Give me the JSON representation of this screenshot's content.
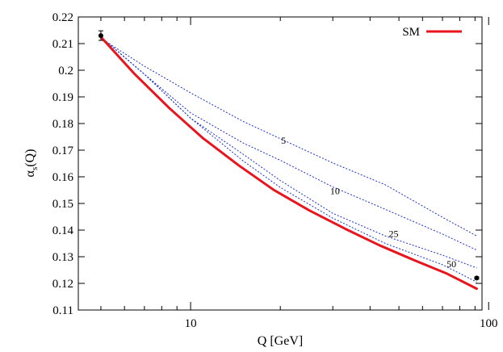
{
  "chart_data": {
    "type": "line",
    "title": "",
    "xlabel": "Q  [GeV]",
    "ylabel_main": "α",
    "ylabel_sub": "s",
    "ylabel_suffix": "(Q)",
    "xscale": "log",
    "xlim": [
      4.2,
      95
    ],
    "ylim": [
      0.11,
      0.22
    ],
    "grid": false,
    "legend": {
      "position": "top-right"
    },
    "x_ticks": [
      {
        "value": 10,
        "label": "10"
      },
      {
        "value": 100,
        "label": "100"
      }
    ],
    "y_ticks": [
      {
        "value": 0.11,
        "label": "0.11"
      },
      {
        "value": 0.12,
        "label": "0.12"
      },
      {
        "value": 0.13,
        "label": "0.13"
      },
      {
        "value": 0.14,
        "label": "0.14"
      },
      {
        "value": 0.15,
        "label": "0.15"
      },
      {
        "value": 0.16,
        "label": "0.16"
      },
      {
        "value": 0.17,
        "label": "0.17"
      },
      {
        "value": 0.18,
        "label": "0.18"
      },
      {
        "value": 0.19,
        "label": "0.19"
      },
      {
        "value": 0.2,
        "label": "0.2"
      },
      {
        "value": 0.21,
        "label": "0.21"
      },
      {
        "value": 0.22,
        "label": "0.22"
      }
    ],
    "series": [
      {
        "name": "SM",
        "color": "#e8141e",
        "style": "solid",
        "x": [
          5,
          6.5,
          8.5,
          11,
          14.5,
          19,
          25,
          33,
          43,
          56,
          72,
          91.2
        ],
        "y": [
          0.2125,
          0.1985,
          0.1857,
          0.1745,
          0.1643,
          0.1551,
          0.1474,
          0.1405,
          0.1343,
          0.1288,
          0.1238,
          0.118
        ]
      },
      {
        "label": "5",
        "color": "#1c32c8",
        "style": "dotted",
        "x": [
          5,
          7,
          10,
          15,
          20,
          30,
          45,
          70,
          91.2
        ],
        "y": [
          0.212,
          0.2015,
          0.1915,
          0.1808,
          0.1743,
          0.1652,
          0.157,
          0.1448,
          0.1378
        ]
      },
      {
        "label": "10",
        "color": "#1c32c8",
        "style": "dotted",
        "x": [
          5,
          7,
          10,
          15,
          20,
          30,
          45,
          70,
          91.2
        ],
        "y": [
          0.2125,
          0.1985,
          0.184,
          0.1727,
          0.1662,
          0.1562,
          0.1478,
          0.1385,
          0.1325
        ]
      },
      {
        "label": "25",
        "color": "#1c32c8",
        "style": "dotted",
        "x": [
          5,
          7,
          10,
          15,
          20,
          30,
          45,
          70,
          91.2
        ],
        "y": [
          0.2125,
          0.1985,
          0.182,
          0.1685,
          0.1586,
          0.1463,
          0.1378,
          0.1306,
          0.1258
        ]
      },
      {
        "label": "50",
        "color": "#1c32c8",
        "style": "dotted",
        "x": [
          5,
          7,
          10,
          15,
          20,
          30,
          45,
          70,
          91.2
        ],
        "y": [
          0.2125,
          0.1985,
          0.182,
          0.166,
          0.156,
          0.1445,
          0.135,
          0.127,
          0.1205
        ]
      }
    ],
    "curve_labels": [
      {
        "text": "5",
        "x": 20.5,
        "y": 0.1725
      },
      {
        "text": "10",
        "x": 30.5,
        "y": 0.1535
      },
      {
        "text": "25",
        "x": 48,
        "y": 0.1375
      },
      {
        "text": "50",
        "x": 75,
        "y": 0.126
      }
    ],
    "points": [
      {
        "x": 5,
        "y": 0.213,
        "y_err": 0.0018
      },
      {
        "x": 91.2,
        "y": 0.122,
        "y_err": 0.0004
      }
    ]
  }
}
